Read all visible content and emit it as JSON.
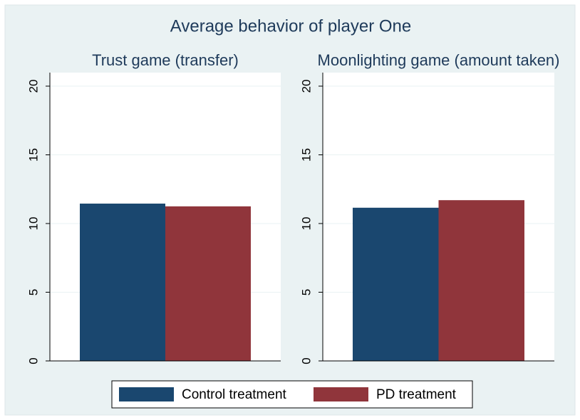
{
  "title": "Average behavior of player One",
  "chart_data": [
    {
      "type": "bar",
      "title": "Trust game (transfer)",
      "categories": [
        null
      ],
      "series": [
        {
          "name": "Control treatment",
          "color": "#1a476f",
          "values": [
            11.45
          ]
        },
        {
          "name": "PD treatment",
          "color": "#90353b",
          "values": [
            11.25
          ]
        }
      ],
      "ylim": [
        0,
        20
      ],
      "yticks": [
        0,
        5,
        10,
        15,
        20
      ],
      "grid": true
    },
    {
      "type": "bar",
      "title": "Moonlighting game (amount taken)",
      "categories": [
        null
      ],
      "series": [
        {
          "name": "Control treatment",
          "color": "#1a476f",
          "values": [
            11.15
          ]
        },
        {
          "name": "PD treatment",
          "color": "#90353b",
          "values": [
            11.7
          ]
        }
      ],
      "ylim": [
        0,
        20
      ],
      "yticks": [
        0,
        5,
        10,
        15,
        20
      ],
      "grid": true
    }
  ],
  "legend": "bottom"
}
